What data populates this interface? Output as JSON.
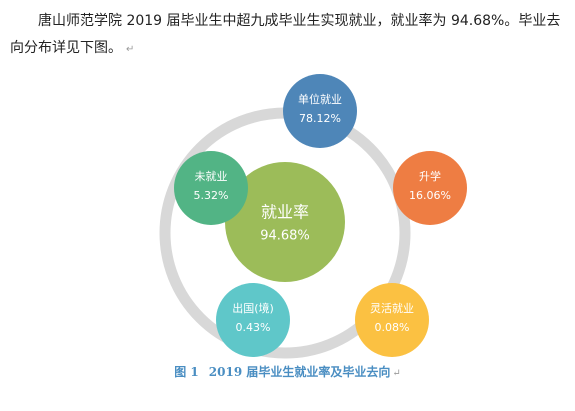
{
  "paragraph": {
    "text": "唐山师范学院 2019 届毕业生中超九成毕业生实现就业，就业率为 94.68%。毕业去向分布详见下图。",
    "mark": "↵"
  },
  "diagram": {
    "center": {
      "label": "就业率",
      "value": "94.68%",
      "color": "#9cbc59"
    },
    "ring_color": "#d8d8d8",
    "nodes": [
      {
        "label": "单位就业",
        "value": "78.12%",
        "color": "#4e86b8"
      },
      {
        "label": "升学",
        "value": "16.06%",
        "color": "#ee7d43"
      },
      {
        "label": "灵活就业",
        "value": "0.08%",
        "color": "#fbc142"
      },
      {
        "label": "出国(境)",
        "value": "0.43%",
        "color": "#5fc7c9"
      },
      {
        "label": "未就业",
        "value": "5.32%",
        "color": "#52b485"
      }
    ]
  },
  "caption": {
    "number": "图 1",
    "text": "2019 届毕业生就业率及毕业去向",
    "mark": "↵"
  }
}
